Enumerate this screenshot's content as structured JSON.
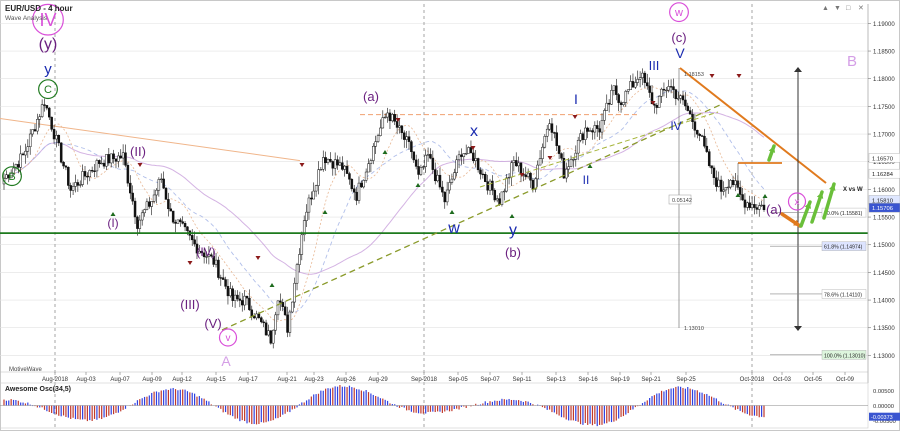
{
  "header": {
    "title": "EUR/USD - 4 hour",
    "subtitle": "Wave Analysis",
    "footer_logo": "MotiveWave"
  },
  "window_controls": [
    "▲",
    "▼",
    "□",
    "✕"
  ],
  "oscillator": {
    "title": "Awesome Osc(34,5)",
    "ticks": [
      "0.00500",
      "0.00000",
      "-0.00500"
    ],
    "current_value": "-0.00373"
  },
  "chart_data": {
    "type": "candlestick",
    "symbol": "EUR/USD",
    "timeframe": "4 hour",
    "ylim": [
      1.127,
      1.1935
    ],
    "yticks": [
      1.13,
      1.135,
      1.14,
      1.145,
      1.15,
      1.155,
      1.16,
      1.165,
      1.17,
      1.175,
      1.18,
      1.185,
      1.19
    ],
    "xticks": [
      "Aug-2018",
      "Aug-03",
      "Aug-07",
      "Aug-09",
      "Aug-12",
      "Aug-15",
      "Aug-17",
      "Aug-21",
      "Aug-23",
      "Aug-26",
      "Aug-29",
      "Sep-2018",
      "Sep-05",
      "Sep-07",
      "Sep-11",
      "Sep-13",
      "Sep-16",
      "Sep-19",
      "Sep-21",
      "Sep-25",
      "Oct-2018",
      "Oct-03",
      "Oct-05",
      "Oct-09"
    ],
    "price_anchors": [
      [
        0,
        1.162
      ],
      [
        8,
        1.166
      ],
      [
        17,
        1.176
      ],
      [
        28,
        1.16
      ],
      [
        40,
        1.165
      ],
      [
        50,
        1.166
      ],
      [
        56,
        1.154
      ],
      [
        62,
        1.158
      ],
      [
        66,
        1.162
      ],
      [
        70,
        1.1555
      ],
      [
        80,
        1.15
      ],
      [
        88,
        1.147
      ],
      [
        96,
        1.14
      ],
      [
        101,
        1.14
      ],
      [
        106,
        1.137
      ],
      [
        112,
        1.133
      ],
      [
        115,
        1.141
      ],
      [
        119,
        1.135
      ],
      [
        126,
        1.155
      ],
      [
        134,
        1.166
      ],
      [
        142,
        1.164
      ],
      [
        148,
        1.159
      ],
      [
        157,
        1.17
      ],
      [
        161,
        1.174
      ],
      [
        171,
        1.167
      ],
      [
        174,
        1.162
      ],
      [
        178,
        1.166
      ],
      [
        185,
        1.158
      ],
      [
        192,
        1.167
      ],
      [
        197,
        1.166
      ],
      [
        203,
        1.161
      ],
      [
        208,
        1.158
      ],
      [
        214,
        1.165
      ],
      [
        222,
        1.161
      ],
      [
        229,
        1.173
      ],
      [
        235,
        1.163
      ],
      [
        244,
        1.171
      ],
      [
        250,
        1.171
      ],
      [
        256,
        1.178
      ],
      [
        259,
        1.176
      ],
      [
        264,
        1.179
      ],
      [
        267,
        1.181
      ],
      [
        273,
        1.175
      ],
      [
        279,
        1.179
      ],
      [
        286,
        1.175
      ],
      [
        292,
        1.17
      ],
      [
        297,
        1.163
      ],
      [
        301,
        1.16
      ],
      [
        305,
        1.162
      ],
      [
        310,
        1.158
      ],
      [
        316,
        1.157
      ]
    ],
    "oscillator_values": [
      0.002,
      -0.005,
      0.0055,
      -0.006,
      0.0065,
      -0.0025,
      0.002,
      -0.0065,
      0.006,
      -0.0037
    ],
    "levels": [
      {
        "label": "50.0% (1.15581)",
        "value": 1.15581
      },
      {
        "label": "61.8% (1.14974)",
        "value": 1.14974
      },
      {
        "label": "78.6% (1.14110)",
        "value": 1.1411
      },
      {
        "label": "100.0% (1.13010)",
        "value": 1.1301
      }
    ],
    "price_tags": [
      {
        "label": "1.16570",
        "value": 1.1657
      },
      {
        "label": "1.16284",
        "value": 1.16284
      },
      {
        "label": "1.15810",
        "value": 1.1581
      },
      {
        "label": "1.15706",
        "value": 1.15706
      }
    ],
    "support_level": 1.1521,
    "measure_label": "0.05142",
    "low_label": "1.13010",
    "high_label": "1.18153",
    "xw_label": "X vs W",
    "wave_labels": [
      {
        "text": "IV",
        "style": "circle",
        "color": "#d94fd9"
      },
      {
        "text": "(y)",
        "color": "#6b2080"
      },
      {
        "text": "y",
        "color": "#1a2bb0"
      },
      {
        "text": "C",
        "style": "circle",
        "color": "#1f7a1f"
      },
      {
        "text": "B",
        "style": "circle",
        "color": "#1f7a1f"
      },
      {
        "text": "(I)",
        "color": "#6b2080"
      },
      {
        "text": "(II)",
        "color": "#6b2080"
      },
      {
        "text": "(III)",
        "color": "#6b2080"
      },
      {
        "text": "(IV)",
        "color": "#6b2080"
      },
      {
        "text": "(V)",
        "color": "#6b2080"
      },
      {
        "text": "v",
        "style": "circle",
        "color": "#d94fd9"
      },
      {
        "text": "A",
        "color": "#d49ee6"
      },
      {
        "text": "(a)",
        "color": "#6b2080"
      },
      {
        "text": "x",
        "color": "#1a2bb0"
      },
      {
        "text": "w",
        "color": "#1a2bb0"
      },
      {
        "text": "y",
        "color": "#1a2bb0"
      },
      {
        "text": "(b)",
        "color": "#6b2080"
      },
      {
        "text": "I",
        "color": "#1a2bb0"
      },
      {
        "text": "II",
        "color": "#1a2bb0"
      },
      {
        "text": "III",
        "color": "#1a2bb0"
      },
      {
        "text": "IV",
        "color": "#1a2bb0"
      },
      {
        "text": "V",
        "color": "#1a2bb0"
      },
      {
        "text": "w",
        "style": "circle",
        "color": "#d94fd9"
      },
      {
        "text": "(c)",
        "color": "#6b2080"
      },
      {
        "text": "(a)",
        "color": "#6b2080"
      },
      {
        "text": "x",
        "style": "circle",
        "color": "#d94fd9"
      },
      {
        "text": "B",
        "color": "#d49ee6"
      }
    ],
    "colors": {
      "up_candle": "#111111",
      "down_candle": "#111111",
      "support_line": "#1d7a1d",
      "trend_line": "#e07a1e",
      "channel_line": "#8a9a2a",
      "osc_up": "#2f3fe0",
      "osc_down": "#c0392b",
      "arrow_green": "#6abf3a",
      "arrow_orange": "#e07a1e",
      "target_line": "#444444"
    }
  }
}
